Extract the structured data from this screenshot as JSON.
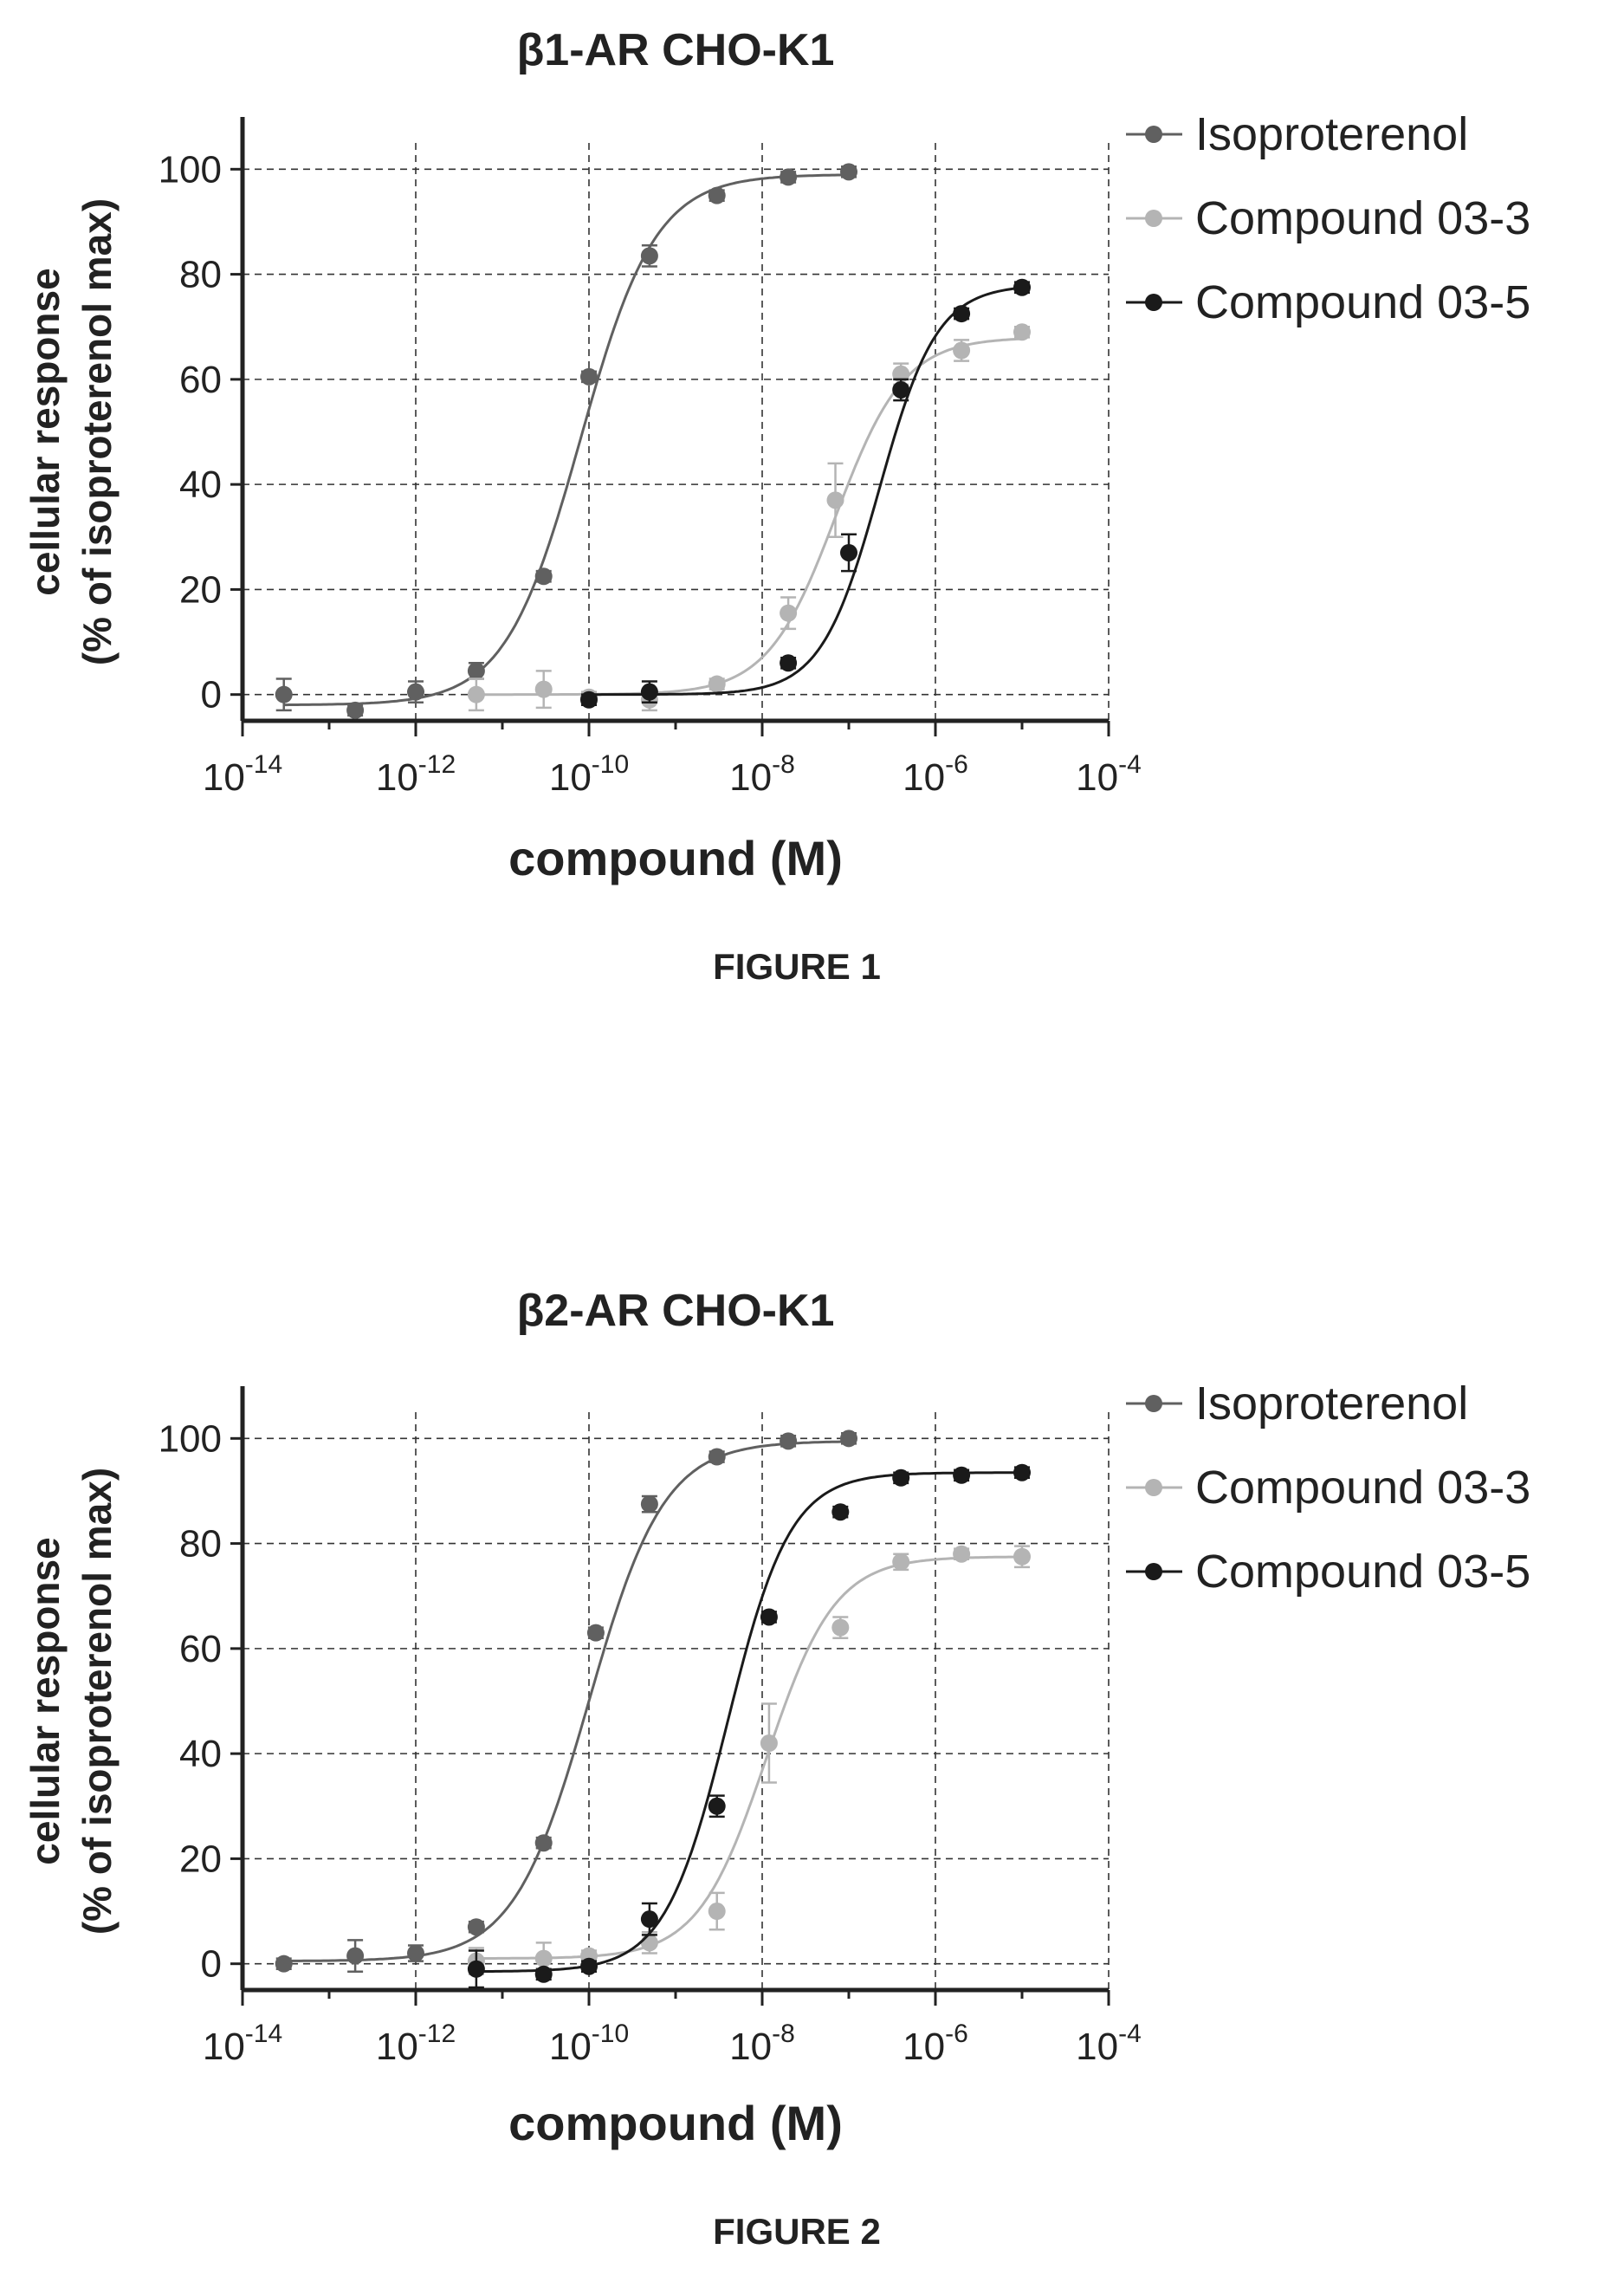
{
  "chart_data": [
    {
      "type": "scatter",
      "title": "β1-AR CHO-K1",
      "caption": "FIGURE 1",
      "xlabel": "compound (M)",
      "ylabel_line1": "cellular response",
      "ylabel_line2": "(% of isoproterenol max)",
      "x_scale": "log",
      "xlim": [
        1e-14,
        0.0001
      ],
      "ylim": [
        -5,
        105
      ],
      "x_ticks": [
        -14,
        -12,
        -10,
        -8,
        -6,
        -4
      ],
      "x_tick_labels": [
        "10-14",
        "10-12",
        "10-10",
        "10-8",
        "10-6",
        "10-4"
      ],
      "y_ticks": [
        0,
        20,
        40,
        60,
        80,
        100
      ],
      "y_tick_labels": [
        "0",
        "20",
        "40",
        "60",
        "80",
        "100"
      ],
      "grid": true,
      "legend_position": "right",
      "series": [
        {
          "name": "Isoproterenol",
          "color": "#606060",
          "fit": {
            "bottom": -2,
            "top": 99,
            "logEC50": -10.1,
            "hill": 1.0
          },
          "points": [
            {
              "x": 3e-14,
              "y": 0,
              "err": 3
            },
            {
              "x": 2e-13,
              "y": -3,
              "err": 1
            },
            {
              "x": 1e-12,
              "y": 0.5,
              "err": 2
            },
            {
              "x": 5e-12,
              "y": 4.5,
              "err": 1.5
            },
            {
              "x": 3e-11,
              "y": 22.5,
              "err": 1
            },
            {
              "x": 1e-10,
              "y": 60.5,
              "err": 1
            },
            {
              "x": 5e-10,
              "y": 83.5,
              "err": 2
            },
            {
              "x": 3e-09,
              "y": 95,
              "err": 1
            },
            {
              "x": 2e-08,
              "y": 98.5,
              "err": 1
            },
            {
              "x": 1e-07,
              "y": 99.5,
              "err": 1
            }
          ]
        },
        {
          "name": "Compound 03-3",
          "color": "#b4b4b4",
          "fit": {
            "bottom": 0,
            "top": 68,
            "logEC50": -7.15,
            "hill": 1.1
          },
          "points": [
            {
              "x": 5e-12,
              "y": 0,
              "err": 3
            },
            {
              "x": 3e-11,
              "y": 1,
              "err": 3.5
            },
            {
              "x": 1e-10,
              "y": -0.5,
              "err": 1
            },
            {
              "x": 5e-10,
              "y": -1,
              "err": 2
            },
            {
              "x": 3e-09,
              "y": 2,
              "err": 1
            },
            {
              "x": 2e-08,
              "y": 15.5,
              "err": 3
            },
            {
              "x": 7e-08,
              "y": 37,
              "err": 7
            },
            {
              "x": 4e-07,
              "y": 61,
              "err": 2
            },
            {
              "x": 2e-06,
              "y": 65.5,
              "err": 2
            },
            {
              "x": 1e-05,
              "y": 69,
              "err": 1
            }
          ]
        },
        {
          "name": "Compound 03-5",
          "color": "#1a1a1a",
          "fit": {
            "bottom": 0,
            "top": 78,
            "logEC50": -6.65,
            "hill": 1.3
          },
          "points": [
            {
              "x": 1e-10,
              "y": -1,
              "err": 1
            },
            {
              "x": 5e-10,
              "y": 0.5,
              "err": 2
            },
            {
              "x": 2e-08,
              "y": 6,
              "err": 1
            },
            {
              "x": 1e-07,
              "y": 27,
              "err": 3.5
            },
            {
              "x": 4e-07,
              "y": 58,
              "err": 2
            },
            {
              "x": 2e-06,
              "y": 72.5,
              "err": 1
            },
            {
              "x": 1e-05,
              "y": 77.5,
              "err": 1
            }
          ]
        }
      ]
    },
    {
      "type": "scatter",
      "title": "β2-AR CHO-K1",
      "caption": "FIGURE 2",
      "xlabel": "compound (M)",
      "ylabel_line1": "cellular response",
      "ylabel_line2": "(% of isoproterenol max)",
      "x_scale": "log",
      "xlim": [
        1e-14,
        0.0001
      ],
      "ylim": [
        -5,
        105
      ],
      "x_ticks": [
        -14,
        -12,
        -10,
        -8,
        -6,
        -4
      ],
      "x_tick_labels": [
        "10-14",
        "10-12",
        "10-10",
        "10-8",
        "10-6",
        "10-4"
      ],
      "y_ticks": [
        0,
        20,
        40,
        60,
        80,
        100
      ],
      "y_tick_labels": [
        "0",
        "20",
        "40",
        "60",
        "80",
        "100"
      ],
      "grid": true,
      "legend_position": "right",
      "series": [
        {
          "name": "Isoproterenol",
          "color": "#606060",
          "fit": {
            "bottom": 0.5,
            "top": 99.5,
            "logEC50": -10.0,
            "hill": 1.0
          },
          "points": [
            {
              "x": 3e-14,
              "y": 0,
              "err": 1
            },
            {
              "x": 2e-13,
              "y": 1.5,
              "err": 3
            },
            {
              "x": 1e-12,
              "y": 2,
              "err": 1.5
            },
            {
              "x": 5e-12,
              "y": 7,
              "err": 1
            },
            {
              "x": 3e-11,
              "y": 23,
              "err": 1
            },
            {
              "x": 1.2e-10,
              "y": 63,
              "err": 1
            },
            {
              "x": 5e-10,
              "y": 87.5,
              "err": 1.5
            },
            {
              "x": 3e-09,
              "y": 96.5,
              "err": 1
            },
            {
              "x": 2e-08,
              "y": 99.5,
              "err": 1
            },
            {
              "x": 1e-07,
              "y": 100,
              "err": 1
            }
          ]
        },
        {
          "name": "Compound 03-3",
          "color": "#b4b4b4",
          "fit": {
            "bottom": 1,
            "top": 77.5,
            "logEC50": -7.95,
            "hill": 1.1
          },
          "points": [
            {
              "x": 5e-12,
              "y": 0.5,
              "err": 2.5
            },
            {
              "x": 3e-11,
              "y": 1,
              "err": 3
            },
            {
              "x": 1e-10,
              "y": 1.5,
              "err": 1
            },
            {
              "x": 5e-10,
              "y": 4,
              "err": 2
            },
            {
              "x": 3e-09,
              "y": 10,
              "err": 3.5
            },
            {
              "x": 1.2e-08,
              "y": 42,
              "err": 7.5
            },
            {
              "x": 8e-08,
              "y": 64,
              "err": 2
            },
            {
              "x": 4e-07,
              "y": 76.5,
              "err": 1.5
            },
            {
              "x": 2e-06,
              "y": 78,
              "err": 1
            },
            {
              "x": 1e-05,
              "y": 77.5,
              "err": 2
            }
          ]
        },
        {
          "name": "Compound 03-5",
          "color": "#1a1a1a",
          "fit": {
            "bottom": -1.5,
            "top": 93.5,
            "logEC50": -8.4,
            "hill": 1.2
          },
          "points": [
            {
              "x": 5e-12,
              "y": -1,
              "err": 3.5
            },
            {
              "x": 3e-11,
              "y": -2,
              "err": 1
            },
            {
              "x": 1e-10,
              "y": -0.5,
              "err": 1
            },
            {
              "x": 5e-10,
              "y": 8.5,
              "err": 3
            },
            {
              "x": 3e-09,
              "y": 30,
              "err": 2
            },
            {
              "x": 1.2e-08,
              "y": 66,
              "err": 1
            },
            {
              "x": 8e-08,
              "y": 86,
              "err": 1
            },
            {
              "x": 4e-07,
              "y": 92.5,
              "err": 1
            },
            {
              "x": 2e-06,
              "y": 93,
              "err": 1
            },
            {
              "x": 1e-05,
              "y": 93.5,
              "err": 1
            }
          ]
        }
      ]
    }
  ]
}
